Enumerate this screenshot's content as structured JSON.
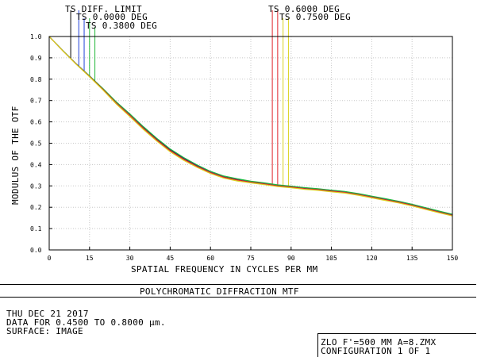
{
  "chart_data": {
    "type": "line",
    "xlabel": "SPATIAL FREQUENCY IN CYCLES PER MM",
    "ylabel": "MODULUS OF THE OTF",
    "xlim": [
      0,
      150
    ],
    "ylim": [
      0,
      1
    ],
    "xticks": [
      0,
      15,
      30,
      45,
      60,
      75,
      90,
      105,
      120,
      135,
      150
    ],
    "yticks": [
      0.0,
      0.1,
      0.2,
      0.3,
      0.4,
      0.5,
      0.6,
      0.7,
      0.8,
      0.9,
      1.0
    ],
    "xtick_labels": [
      "0",
      "15",
      "30",
      "45",
      "60",
      "75",
      "90",
      "105",
      "120",
      "135",
      "150"
    ],
    "ytick_labels": [
      "0.0",
      "0.1",
      "0.2",
      "0.3",
      "0.4",
      "0.5",
      "0.6",
      "0.7",
      "0.8",
      "0.9",
      "1.0"
    ],
    "grid": true,
    "x": [
      0,
      5,
      10,
      15,
      20,
      25,
      30,
      35,
      40,
      45,
      50,
      55,
      60,
      65,
      70,
      75,
      80,
      85,
      90,
      95,
      100,
      105,
      110,
      115,
      120,
      125,
      130,
      135,
      140,
      145,
      150
    ],
    "series": [
      {
        "name": "TS DIFF. LIMIT",
        "color": "#000000",
        "values": [
          1.0,
          0.935,
          0.872,
          0.815,
          0.755,
          0.69,
          0.635,
          0.575,
          0.52,
          0.47,
          0.43,
          0.395,
          0.365,
          0.343,
          0.33,
          0.32,
          0.312,
          0.303,
          0.297,
          0.29,
          0.285,
          0.278,
          0.272,
          0.262,
          0.25,
          0.238,
          0.226,
          0.212,
          0.196,
          0.18,
          0.165
        ]
      },
      {
        "name": "TS 0.0000 DEG",
        "color": "#1f3fd8",
        "values": [
          1.0,
          0.935,
          0.872,
          0.815,
          0.755,
          0.692,
          0.636,
          0.577,
          0.522,
          0.472,
          0.432,
          0.397,
          0.367,
          0.345,
          0.332,
          0.321,
          0.313,
          0.304,
          0.298,
          0.291,
          0.286,
          0.279,
          0.273,
          0.263,
          0.251,
          0.239,
          0.227,
          0.213,
          0.197,
          0.181,
          0.166
        ]
      },
      {
        "name": "TS 0.3800 DEG",
        "color": "#22b83a",
        "values": [
          1.0,
          0.935,
          0.872,
          0.815,
          0.756,
          0.693,
          0.637,
          0.578,
          0.523,
          0.473,
          0.433,
          0.398,
          0.368,
          0.346,
          0.333,
          0.322,
          0.314,
          0.305,
          0.299,
          0.292,
          0.287,
          0.28,
          0.274,
          0.264,
          0.252,
          0.24,
          0.228,
          0.214,
          0.198,
          0.182,
          0.167
        ]
      },
      {
        "name": "TS 0.6000 DEG",
        "color": "#e0242a",
        "values": [
          1.0,
          0.934,
          0.871,
          0.813,
          0.752,
          0.687,
          0.63,
          0.57,
          0.515,
          0.465,
          0.425,
          0.391,
          0.362,
          0.34,
          0.327,
          0.317,
          0.309,
          0.3,
          0.294,
          0.287,
          0.282,
          0.275,
          0.269,
          0.259,
          0.247,
          0.235,
          0.223,
          0.209,
          0.193,
          0.177,
          0.162
        ]
      },
      {
        "name": "TS 0.7500 DEG",
        "color": "#d9d11c",
        "values": [
          1.0,
          0.934,
          0.87,
          0.811,
          0.749,
          0.683,
          0.625,
          0.565,
          0.51,
          0.46,
          0.42,
          0.387,
          0.358,
          0.336,
          0.323,
          0.314,
          0.306,
          0.297,
          0.291,
          0.284,
          0.279,
          0.272,
          0.266,
          0.256,
          0.244,
          0.232,
          0.22,
          0.206,
          0.19,
          0.174,
          0.159
        ]
      }
    ],
    "legend_lines_x": [
      8,
      11,
      13,
      15,
      17,
      83,
      85,
      87,
      89
    ]
  },
  "legend": {
    "diff_limit": "TS DIFF. LIMIT",
    "deg_0": "TS 0.0000 DEG",
    "deg_038": "TS 0.3800 DEG",
    "deg_060": "TS 0.6000 DEG",
    "deg_075": "TS 0.7500 DEG"
  },
  "footer": {
    "title": "POLYCHROMATIC DIFFRACTION MTF",
    "date": "THU DEC 21 2017",
    "data_range": "DATA FOR 0.4500 TO 0.8000 µm.",
    "surface": "SURFACE: IMAGE",
    "file": "ZLO F'=500 MM A=8.ZMX",
    "configuration": "CONFIGURATION 1 OF 1"
  }
}
